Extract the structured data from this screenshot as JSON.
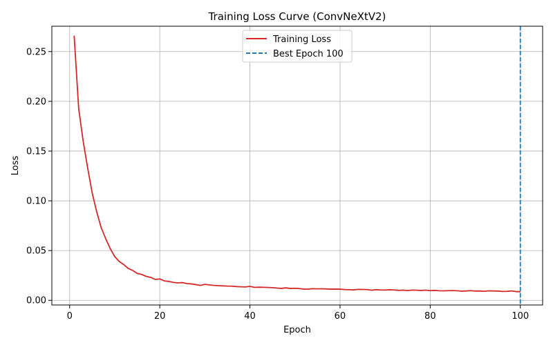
{
  "chart_data": {
    "type": "line",
    "title": "Training Loss Curve (ConvNeXtV2)",
    "xlabel": "Epoch",
    "ylabel": "Loss",
    "xlim": [
      -3.95,
      104.95
    ],
    "ylim": [
      -0.0047,
      0.2755
    ],
    "xticks": [
      0,
      20,
      40,
      60,
      80,
      100
    ],
    "yticks": [
      0.0,
      0.05,
      0.1,
      0.15,
      0.2,
      0.25
    ],
    "ytick_labels": [
      "0.00",
      "0.05",
      "0.10",
      "0.15",
      "0.20",
      "0.25"
    ],
    "grid": true,
    "legend_position": "upper-center",
    "series": [
      {
        "name": "Training Loss",
        "color": "#d62728",
        "style": "solid",
        "x": [
          1,
          2,
          3,
          4,
          5,
          6,
          7,
          8,
          9,
          10,
          11,
          12,
          13,
          14,
          15,
          16,
          17,
          18,
          19,
          20,
          21,
          22,
          23,
          24,
          25,
          26,
          27,
          28,
          29,
          30,
          31,
          32,
          33,
          34,
          35,
          36,
          37,
          38,
          39,
          40,
          41,
          42,
          43,
          44,
          45,
          46,
          47,
          48,
          49,
          50,
          51,
          52,
          53,
          54,
          55,
          56,
          57,
          58,
          59,
          60,
          61,
          62,
          63,
          64,
          65,
          66,
          67,
          68,
          69,
          70,
          71,
          72,
          73,
          74,
          75,
          76,
          77,
          78,
          79,
          80,
          81,
          82,
          83,
          84,
          85,
          86,
          87,
          88,
          89,
          90,
          91,
          92,
          93,
          94,
          95,
          96,
          97,
          98,
          99,
          100
        ],
        "y": [
          0.266,
          0.193,
          0.16,
          0.133,
          0.108,
          0.089,
          0.073,
          0.062,
          0.052,
          0.044,
          0.039,
          0.036,
          0.032,
          0.03,
          0.027,
          0.026,
          0.024,
          0.023,
          0.021,
          0.0215,
          0.0195,
          0.019,
          0.018,
          0.0175,
          0.0178,
          0.0168,
          0.0165,
          0.0158,
          0.015,
          0.016,
          0.0155,
          0.015,
          0.0147,
          0.0145,
          0.0143,
          0.0142,
          0.0138,
          0.0136,
          0.0134,
          0.014,
          0.013,
          0.0132,
          0.0131,
          0.0129,
          0.0127,
          0.0123,
          0.012,
          0.0125,
          0.0119,
          0.0121,
          0.0118,
          0.0112,
          0.0113,
          0.0117,
          0.0115,
          0.0116,
          0.0114,
          0.0112,
          0.0113,
          0.0112,
          0.0108,
          0.0107,
          0.0105,
          0.011,
          0.0109,
          0.0108,
          0.0101,
          0.0107,
          0.0104,
          0.0103,
          0.0106,
          0.0104,
          0.01,
          0.0102,
          0.0098,
          0.0103,
          0.0101,
          0.0099,
          0.0102,
          0.0097,
          0.01,
          0.0096,
          0.0095,
          0.0097,
          0.0098,
          0.0096,
          0.0092,
          0.0094,
          0.0097,
          0.0093,
          0.0094,
          0.0091,
          0.0095,
          0.0094,
          0.0093,
          0.0089,
          0.009,
          0.0094,
          0.0088,
          0.0086
        ]
      },
      {
        "name": "Best Epoch 100",
        "color": "#1f77b4",
        "style": "dashed",
        "vline_x": 100
      }
    ]
  }
}
